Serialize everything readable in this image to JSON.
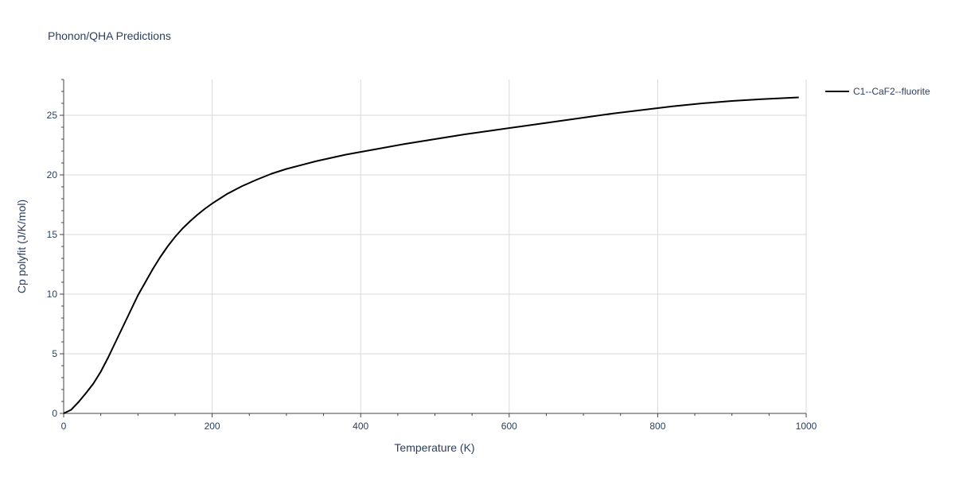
{
  "chart_data": {
    "type": "line",
    "title": "Phonon/QHA Predictions",
    "xlabel": "Temperature (K)",
    "ylabel": "Cp polyfit (J/K/mol)",
    "xlim": [
      0,
      1000
    ],
    "ylim": [
      0,
      28
    ],
    "x_ticks": [
      0,
      200,
      400,
      600,
      800,
      1000
    ],
    "y_ticks": [
      0,
      5,
      10,
      15,
      20,
      25
    ],
    "grid": true,
    "legend_position": "top-right",
    "series": [
      {
        "name": "C1--CaF2--fluorite",
        "color": "#000000",
        "x": [
          0,
          10,
          20,
          30,
          40,
          50,
          60,
          70,
          80,
          90,
          100,
          110,
          120,
          130,
          140,
          150,
          160,
          170,
          180,
          190,
          200,
          220,
          240,
          260,
          280,
          300,
          340,
          380,
          420,
          460,
          500,
          540,
          580,
          620,
          660,
          700,
          740,
          780,
          820,
          860,
          900,
          940,
          990
        ],
        "y": [
          0,
          0.3,
          0.95,
          1.7,
          2.5,
          3.5,
          4.7,
          6.0,
          7.3,
          8.6,
          9.9,
          11.0,
          12.1,
          13.1,
          14.0,
          14.8,
          15.5,
          16.1,
          16.65,
          17.15,
          17.6,
          18.4,
          19.05,
          19.6,
          20.1,
          20.5,
          21.15,
          21.7,
          22.15,
          22.6,
          23.0,
          23.4,
          23.75,
          24.1,
          24.45,
          24.8,
          25.15,
          25.45,
          25.75,
          26.0,
          26.2,
          26.35,
          26.5
        ]
      }
    ]
  }
}
